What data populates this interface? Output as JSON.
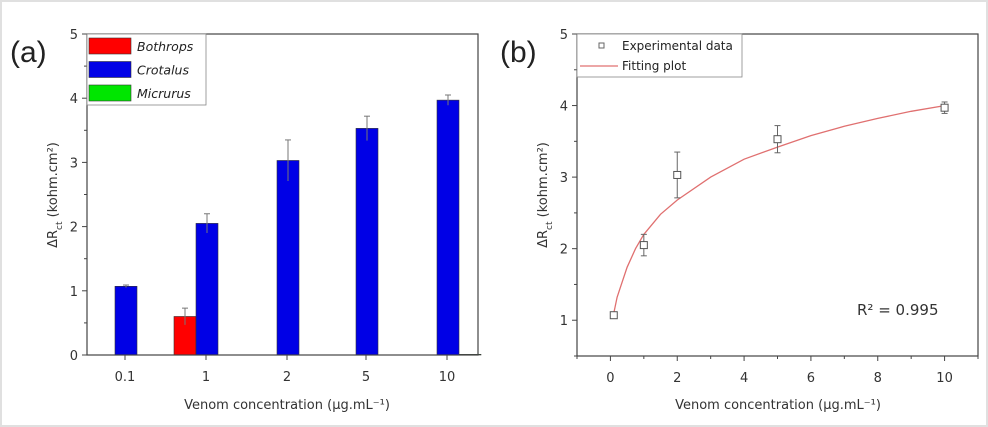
{
  "chart_data": [
    {
      "type": "bar",
      "panel_label": "(a)",
      "categories": [
        "0.1",
        "1",
        "2",
        "5",
        "10"
      ],
      "series": [
        {
          "name": "Bothrops",
          "color": "#ff0000",
          "values": [
            0,
            0.6,
            0,
            0,
            0
          ],
          "errors": [
            0,
            0.13,
            0,
            0,
            0
          ]
        },
        {
          "name": "Crotalus",
          "color": "#0000e6",
          "values": [
            1.07,
            2.05,
            3.03,
            3.53,
            3.97
          ],
          "errors": [
            0.02,
            0.15,
            0.32,
            0.19,
            0.08
          ]
        },
        {
          "name": "Micrurus",
          "color": "#00e600",
          "values": [
            0,
            0,
            0,
            0,
            0.01
          ],
          "errors": [
            0,
            0,
            0,
            0,
            0
          ]
        }
      ],
      "ylabel": {
        "main": "ΔR",
        "sub": "ct",
        "unit": " (kohm.cm²)"
      },
      "xlabel": "Venom concentration (µg.mL⁻¹)",
      "ylim": [
        0,
        5
      ],
      "yticks": [
        "0",
        "1",
        "2",
        "3",
        "4",
        "5"
      ],
      "legend": "top-left",
      "grid": false
    },
    {
      "type": "scatter",
      "panel_label": "(b)",
      "series": [
        {
          "name": "Experimental data",
          "marker": "open-square",
          "x": [
            0.1,
            1,
            2,
            5,
            10
          ],
          "y": [
            1.07,
            2.05,
            3.03,
            3.53,
            3.97
          ],
          "errors": [
            0.02,
            0.15,
            0.32,
            0.19,
            0.08
          ]
        },
        {
          "name": "Fitting plot",
          "type": "line",
          "color": "#e07070",
          "x": [
            0.1,
            0.2,
            0.3,
            0.5,
            0.75,
            1,
            1.5,
            2,
            3,
            4,
            5,
            6,
            7,
            8,
            9,
            10
          ],
          "y": [
            1.1,
            1.32,
            1.46,
            1.74,
            2.0,
            2.2,
            2.48,
            2.68,
            3.0,
            3.25,
            3.42,
            3.58,
            3.71,
            3.82,
            3.92,
            4.0
          ]
        }
      ],
      "ylabel": {
        "main": "ΔR",
        "sub": "ct",
        "unit": " (kohm.cm²)"
      },
      "xlabel": "Venom concentration (µg.mL⁻¹)",
      "xlim": [
        -1,
        11
      ],
      "ylim": [
        0.5,
        5
      ],
      "xticks": [
        "0",
        "2",
        "4",
        "6",
        "8",
        "10"
      ],
      "yticks": [
        "1",
        "2",
        "3",
        "4",
        "5"
      ],
      "annotation": "R² = 0.995",
      "legend": "top-left",
      "grid": false
    }
  ]
}
